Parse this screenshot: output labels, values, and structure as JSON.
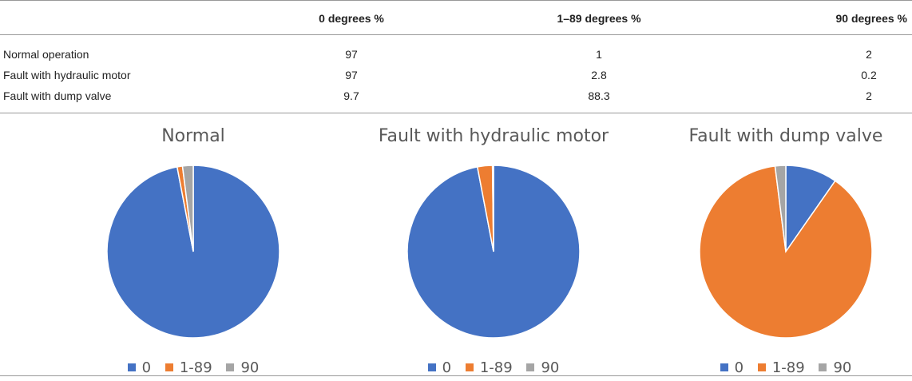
{
  "table": {
    "headers": [
      "",
      "0 degrees %",
      "1–89 degrees %",
      "90 degrees %"
    ],
    "rows": [
      {
        "label": "Normal operation",
        "values": [
          "97",
          "1",
          "2"
        ]
      },
      {
        "label": "Fault with hydraulic motor",
        "values": [
          "97",
          "2.8",
          "0.2"
        ]
      },
      {
        "label": "Fault with dump valve",
        "values": [
          "9.7",
          "88.3",
          "2"
        ]
      }
    ]
  },
  "colors": {
    "s0": "#4472C4",
    "s1": "#ED7D31",
    "s2": "#A5A5A5"
  },
  "chart_data": [
    {
      "type": "pie",
      "title": "Normal",
      "categories": [
        "0",
        "1-89",
        "90"
      ],
      "values": [
        97,
        1,
        2
      ],
      "legend": "bottom"
    },
    {
      "type": "pie",
      "title": "Fault with hydraulic motor",
      "categories": [
        "0",
        "1-89",
        "90"
      ],
      "values": [
        97,
        2.8,
        0.2
      ],
      "legend": "bottom"
    },
    {
      "type": "pie",
      "title": "Fault with dump valve",
      "categories": [
        "0",
        "1-89",
        "90"
      ],
      "values": [
        9.7,
        88.3,
        2
      ],
      "legend": "bottom"
    }
  ]
}
